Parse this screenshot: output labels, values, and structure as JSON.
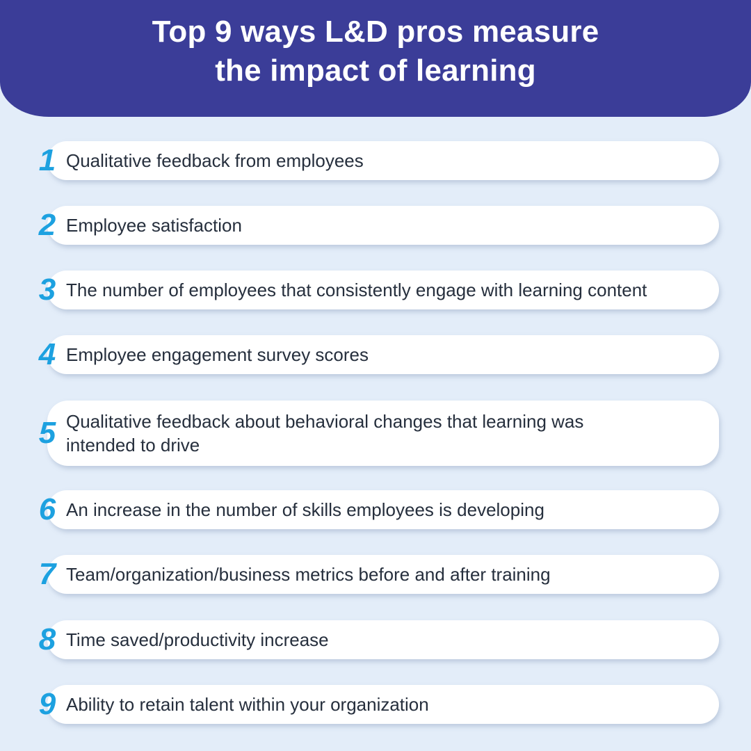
{
  "title": {
    "line1": "Top 9 ways L&D pros measure",
    "line2": "the impact of learning"
  },
  "items": [
    {
      "number": "1",
      "text": "Qualitative feedback from employees"
    },
    {
      "number": "2",
      "text": "Employee satisfaction"
    },
    {
      "number": "3",
      "text": "The number of employees that consistently engage with learning content"
    },
    {
      "number": "4",
      "text": "Employee engagement survey scores"
    },
    {
      "number": "5",
      "text": "Qualitative feedback about behavioral changes that learning was intended to drive"
    },
    {
      "number": "6",
      "text": "An increase in the number of skills employees is developing"
    },
    {
      "number": "7",
      "text": "Team/organization/business metrics before and after training"
    },
    {
      "number": "8",
      "text": "Time saved/productivity increase"
    },
    {
      "number": "9",
      "text": "Ability to retain talent within your organization"
    }
  ],
  "colors": {
    "background": "#e3edf9",
    "header": "#3b3d98",
    "number": "#1da1e0",
    "card": "#ffffff",
    "text": "#262f3d"
  }
}
